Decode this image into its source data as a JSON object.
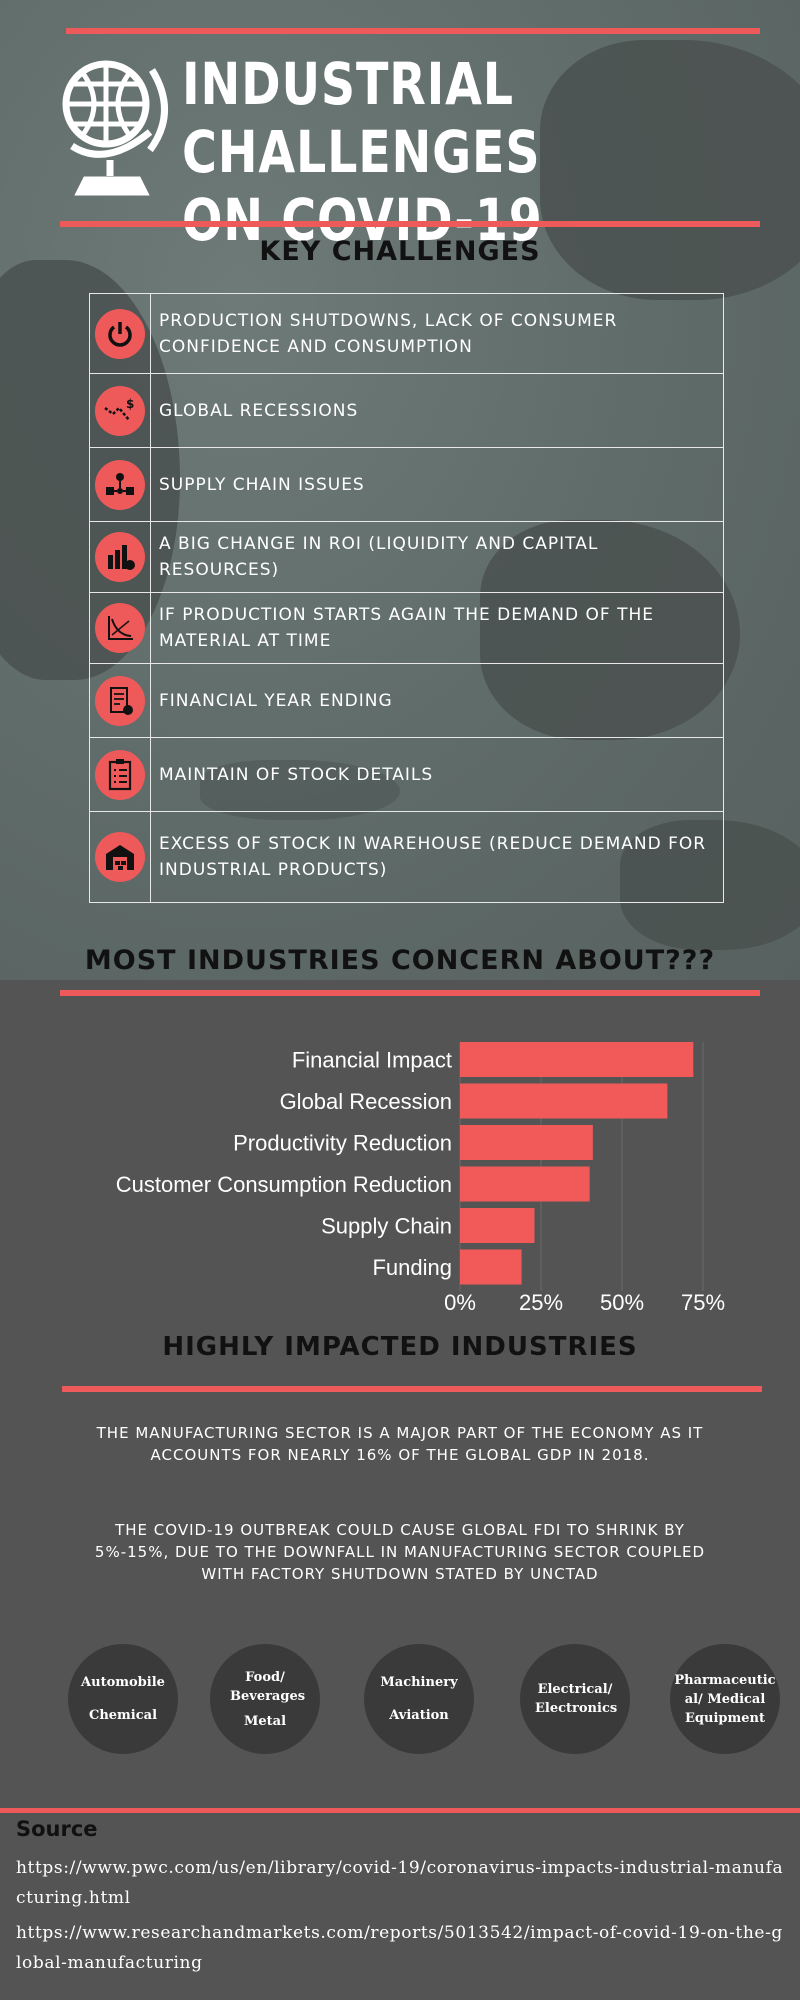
{
  "header": {
    "title_line1": "INDUSTRIAL CHALLENGES",
    "title_line2": "ON COVID-19"
  },
  "key_challenges": {
    "heading": "KEY CHALLENGES",
    "items": [
      {
        "icon": "power-icon",
        "text": "PRODUCTION SHUTDOWNS, LACK OF CONSUMER CONFIDENCE AND CONSUMPTION"
      },
      {
        "icon": "recession-graph-icon",
        "text": "GLOBAL RECESSIONS"
      },
      {
        "icon": "supply-chain-icon",
        "text": "SUPPLY CHAIN ISSUES"
      },
      {
        "icon": "money-bags-icon",
        "text": "A BIG CHANGE IN ROI (LIQUIDITY AND CAPITAL RESOURCES)"
      },
      {
        "icon": "demand-curve-icon",
        "text": "IF PRODUCTION STARTS AGAIN THE DEMAND OF THE MATERIAL AT TIME"
      },
      {
        "icon": "financial-report-icon",
        "text": "FINANCIAL YEAR ENDING"
      },
      {
        "icon": "checklist-icon",
        "text": "MAINTAIN OF STOCK DETAILS"
      },
      {
        "icon": "warehouse-icon",
        "text": "EXCESS OF STOCK IN WAREHOUSE (REDUCE DEMAND FOR INDUSTRIAL PRODUCTS)"
      }
    ]
  },
  "concerns": {
    "heading": "MOST INDUSTRIES CONCERN ABOUT???"
  },
  "chart_data": {
    "type": "bar",
    "orientation": "horizontal",
    "categories": [
      "Financial Impact",
      "Global Recession",
      "Productivity Reduction",
      "Customer Consumption Reduction",
      "Supply Chain",
      "Funding"
    ],
    "values": [
      72,
      64,
      41,
      40,
      23,
      19
    ],
    "xlim": [
      0,
      75
    ],
    "ticks": [
      "0%",
      "25%",
      "50%",
      "75%"
    ],
    "bar_color": "#f25a5a"
  },
  "industries": {
    "heading": "HIGHLY IMPACTED INDUSTRIES",
    "para1": "THE MANUFACTURING SECTOR IS A MAJOR PART OF THE ECONOMY AS IT ACCOUNTS FOR NEARLY 16% OF THE GLOBAL GDP IN 2018.",
    "para2": "THE COVID-19 OUTBREAK COULD CAUSE GLOBAL FDI TO SHRINK BY 5%-15%, DUE TO THE DOWNFALL IN MANUFACTURING SECTOR COUPLED WITH FACTORY SHUTDOWN STATED BY UNCTAD",
    "circles": [
      {
        "a": "Automobile",
        "b": "Chemical"
      },
      {
        "a": "Food/ Beverages",
        "b": "Metal"
      },
      {
        "a": "Machinery",
        "b": "Aviation"
      },
      {
        "a": "Electrical/ Electronics",
        "b": ""
      },
      {
        "a": "Pharmaceutic al/ Medical Equipment",
        "b": ""
      }
    ]
  },
  "source": {
    "title": "Source",
    "link1": "https://www.pwc.com/us/en/library/covid-19/coronavirus-impacts-industrial-manufacturing.html",
    "link2": "https://www.researchandmarkets.com/reports/5013542/impact-of-covid-19-on-the-global-manufacturing"
  },
  "colors": {
    "accent": "#ee5a5a",
    "background": "#545454",
    "map_bg": "#636d6b",
    "industry_circle": "#3a3a3a"
  }
}
